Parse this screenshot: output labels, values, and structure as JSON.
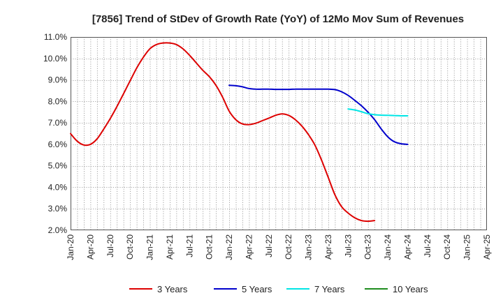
{
  "chart_data": {
    "type": "line",
    "title": "[7856]  Trend of StDev of Growth Rate (YoY) of 12Mo Mov Sum of Revenues",
    "xlabel": "",
    "ylabel": "",
    "x_ticks": [
      "Jan-20",
      "Apr-20",
      "Jul-20",
      "Oct-20",
      "Jan-21",
      "Apr-21",
      "Jul-21",
      "Oct-21",
      "Jan-22",
      "Apr-22",
      "Jul-22",
      "Oct-22",
      "Jan-23",
      "Apr-23",
      "Jul-23",
      "Oct-23",
      "Jan-24",
      "Apr-24",
      "Jul-24",
      "Oct-24",
      "Jan-25",
      "Apr-25"
    ],
    "ylim": [
      2.0,
      11.0
    ],
    "y_ticks": [
      "2.0%",
      "3.0%",
      "4.0%",
      "5.0%",
      "6.0%",
      "7.0%",
      "8.0%",
      "9.0%",
      "10.0%",
      "11.0%"
    ],
    "grid": true,
    "legend_position": "bottom",
    "series": [
      {
        "name": "3 Years",
        "color": "#dd0000",
        "points": [
          [
            0,
            6.5
          ],
          [
            1,
            6.15
          ],
          [
            2,
            5.97
          ],
          [
            3,
            6.0
          ],
          [
            4,
            6.25
          ],
          [
            5,
            6.7
          ],
          [
            6,
            7.2
          ],
          [
            7,
            7.75
          ],
          [
            8,
            8.35
          ],
          [
            9,
            8.95
          ],
          [
            10,
            9.55
          ],
          [
            11,
            10.05
          ],
          [
            12,
            10.45
          ],
          [
            13,
            10.65
          ],
          [
            14,
            10.72
          ],
          [
            15,
            10.72
          ],
          [
            16,
            10.65
          ],
          [
            17,
            10.45
          ],
          [
            18,
            10.15
          ],
          [
            19,
            9.8
          ],
          [
            20,
            9.45
          ],
          [
            21,
            9.15
          ],
          [
            22,
            8.75
          ],
          [
            23,
            8.2
          ],
          [
            24,
            7.55
          ],
          [
            25,
            7.15
          ],
          [
            26,
            6.95
          ],
          [
            27,
            6.92
          ],
          [
            28,
            6.98
          ],
          [
            29,
            7.1
          ],
          [
            30,
            7.22
          ],
          [
            31,
            7.35
          ],
          [
            32,
            7.42
          ],
          [
            33,
            7.35
          ],
          [
            34,
            7.15
          ],
          [
            35,
            6.85
          ],
          [
            36,
            6.45
          ],
          [
            37,
            5.95
          ],
          [
            38,
            5.25
          ],
          [
            39,
            4.45
          ],
          [
            40,
            3.65
          ],
          [
            41,
            3.1
          ],
          [
            42,
            2.8
          ],
          [
            43,
            2.58
          ],
          [
            44,
            2.45
          ],
          [
            45,
            2.42
          ],
          [
            46,
            2.45
          ]
        ]
      },
      {
        "name": "5 Years",
        "color": "#0000cc",
        "points": [
          [
            24,
            8.75
          ],
          [
            25,
            8.73
          ],
          [
            26,
            8.68
          ],
          [
            27,
            8.6
          ],
          [
            28,
            8.57
          ],
          [
            29,
            8.57
          ],
          [
            30,
            8.57
          ],
          [
            31,
            8.56
          ],
          [
            32,
            8.56
          ],
          [
            33,
            8.56
          ],
          [
            34,
            8.57
          ],
          [
            35,
            8.57
          ],
          [
            36,
            8.57
          ],
          [
            37,
            8.57
          ],
          [
            38,
            8.57
          ],
          [
            39,
            8.57
          ],
          [
            40,
            8.55
          ],
          [
            41,
            8.45
          ],
          [
            42,
            8.28
          ],
          [
            43,
            8.05
          ],
          [
            44,
            7.8
          ],
          [
            45,
            7.5
          ],
          [
            46,
            7.15
          ],
          [
            47,
            6.72
          ],
          [
            48,
            6.35
          ],
          [
            49,
            6.12
          ],
          [
            50,
            6.03
          ],
          [
            51,
            6.0
          ]
        ]
      },
      {
        "name": "7 Years",
        "color": "#00e5e5",
        "points": [
          [
            42,
            7.65
          ],
          [
            43,
            7.6
          ],
          [
            44,
            7.52
          ],
          [
            45,
            7.43
          ],
          [
            46,
            7.38
          ],
          [
            47,
            7.36
          ],
          [
            48,
            7.35
          ],
          [
            49,
            7.34
          ],
          [
            50,
            7.33
          ],
          [
            51,
            7.33
          ]
        ]
      },
      {
        "name": "10 Years",
        "color": "#1e8c1e",
        "points": []
      }
    ]
  }
}
